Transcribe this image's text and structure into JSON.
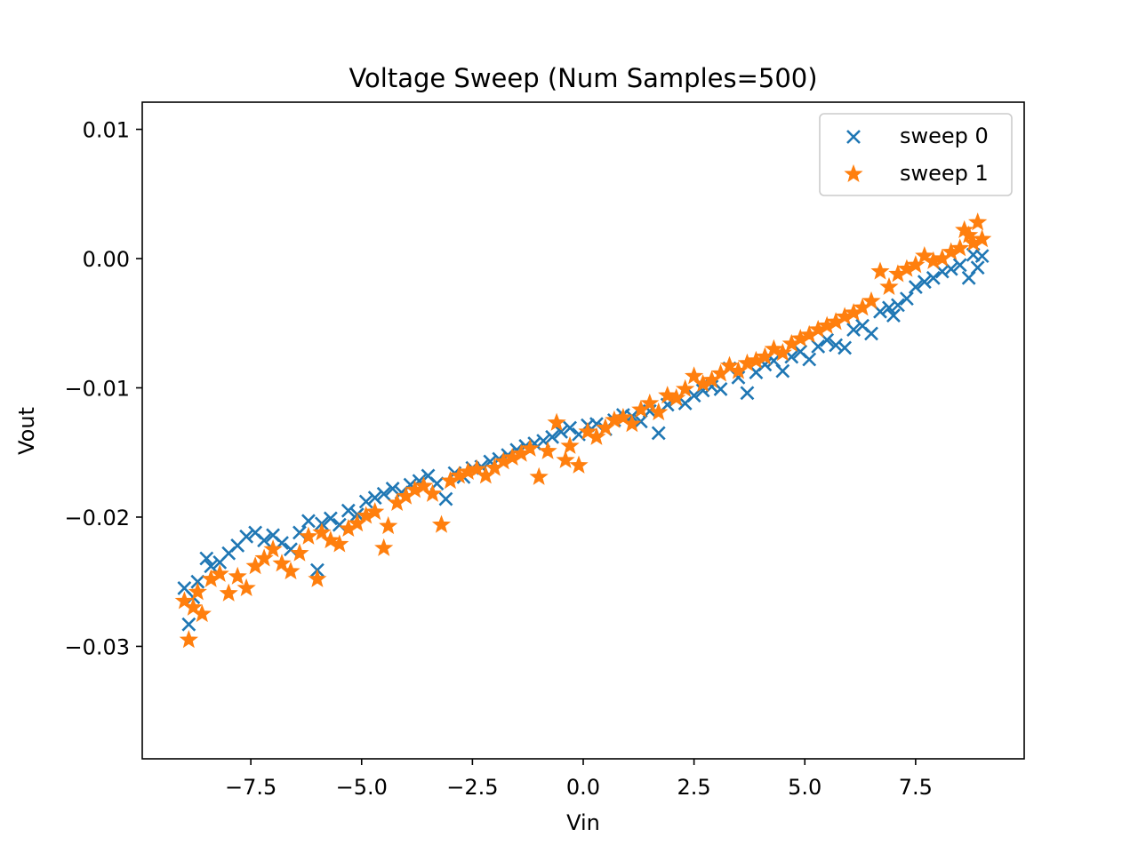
{
  "chart_data": {
    "type": "scatter",
    "title": "Voltage Sweep (Num Samples=500)",
    "xlabel": "Vin",
    "ylabel": "Vout",
    "xlim": [
      -9.95,
      9.95
    ],
    "ylim": [
      -0.0387,
      0.0121
    ],
    "x_ticks": [
      -7.5,
      -5.0,
      -2.5,
      0.0,
      2.5,
      5.0,
      7.5
    ],
    "x_tick_labels": [
      "−7.5",
      "−5.0",
      "−2.5",
      "0.0",
      "2.5",
      "5.0",
      "7.5"
    ],
    "y_ticks": [
      0.01,
      0.0,
      -0.01,
      -0.02,
      -0.03
    ],
    "y_tick_labels": [
      "0.01",
      "0.00",
      "−0.01",
      "−0.02",
      "−0.03"
    ],
    "grid": false,
    "legend_position": "top-right",
    "series": [
      {
        "name": "sweep 0",
        "marker": "x",
        "color": "#1f77b4",
        "x": [
          -9.0,
          -8.9,
          -8.8,
          -8.7,
          -8.5,
          -8.4,
          -8.2,
          -8.0,
          -7.8,
          -7.6,
          -7.4,
          -7.2,
          -7.0,
          -6.8,
          -6.6,
          -6.4,
          -6.2,
          -6.0,
          -5.9,
          -5.7,
          -5.5,
          -5.3,
          -5.1,
          -4.9,
          -4.7,
          -4.5,
          -4.3,
          -4.1,
          -3.9,
          -3.7,
          -3.5,
          -3.3,
          -3.1,
          -2.9,
          -2.7,
          -2.5,
          -2.3,
          -2.1,
          -1.9,
          -1.7,
          -1.5,
          -1.3,
          -1.1,
          -0.9,
          -0.7,
          -0.5,
          -0.3,
          -0.1,
          0.1,
          0.3,
          0.5,
          0.7,
          0.9,
          1.1,
          1.3,
          1.5,
          1.7,
          1.9,
          2.1,
          2.3,
          2.5,
          2.7,
          2.9,
          3.1,
          3.3,
          3.5,
          3.7,
          3.9,
          4.1,
          4.3,
          4.5,
          4.7,
          4.9,
          5.1,
          5.3,
          5.5,
          5.7,
          5.9,
          6.1,
          6.3,
          6.5,
          6.7,
          6.9,
          7.0,
          7.1,
          7.3,
          7.5,
          7.7,
          7.9,
          8.1,
          8.3,
          8.5,
          8.7,
          8.8,
          8.9,
          9.0
        ],
        "y": [
          -0.0255,
          -0.0283,
          -0.0262,
          -0.025,
          -0.0232,
          -0.0238,
          -0.0235,
          -0.0228,
          -0.0222,
          -0.0215,
          -0.0212,
          -0.0218,
          -0.0214,
          -0.022,
          -0.0225,
          -0.0212,
          -0.0203,
          -0.0241,
          -0.0205,
          -0.0201,
          -0.0206,
          -0.0195,
          -0.0198,
          -0.0188,
          -0.0185,
          -0.0182,
          -0.0178,
          -0.0181,
          -0.0175,
          -0.0172,
          -0.0168,
          -0.0174,
          -0.0186,
          -0.0166,
          -0.0169,
          -0.0162,
          -0.0161,
          -0.0157,
          -0.0155,
          -0.0152,
          -0.0148,
          -0.0145,
          -0.0143,
          -0.0141,
          -0.0138,
          -0.0134,
          -0.0131,
          -0.0136,
          -0.0129,
          -0.0128,
          -0.0132,
          -0.0125,
          -0.0121,
          -0.0122,
          -0.0126,
          -0.0118,
          -0.0135,
          -0.0113,
          -0.0109,
          -0.0112,
          -0.0106,
          -0.0102,
          -0.0099,
          -0.0101,
          -0.0085,
          -0.0092,
          -0.0104,
          -0.0088,
          -0.0082,
          -0.0079,
          -0.0087,
          -0.0076,
          -0.0072,
          -0.0078,
          -0.0068,
          -0.0063,
          -0.0067,
          -0.0069,
          -0.0055,
          -0.0052,
          -0.0058,
          -0.0041,
          -0.0038,
          -0.0044,
          -0.0036,
          -0.0031,
          -0.0022,
          -0.0018,
          -0.0015,
          -0.001,
          -0.0008,
          -0.0005,
          -0.0015,
          0.0003,
          -0.0007,
          0.0002
        ]
      },
      {
        "name": "sweep 1",
        "marker": "*",
        "color": "#ff7f0e",
        "x": [
          -9.0,
          -8.9,
          -8.8,
          -8.7,
          -8.6,
          -8.4,
          -8.2,
          -8.0,
          -7.8,
          -7.6,
          -7.4,
          -7.2,
          -7.0,
          -6.8,
          -6.6,
          -6.4,
          -6.2,
          -6.0,
          -5.9,
          -5.7,
          -5.5,
          -5.3,
          -5.1,
          -4.9,
          -4.7,
          -4.5,
          -4.4,
          -4.2,
          -4.0,
          -3.8,
          -3.6,
          -3.4,
          -3.2,
          -3.0,
          -2.8,
          -2.6,
          -2.4,
          -2.2,
          -2.0,
          -1.8,
          -1.6,
          -1.4,
          -1.2,
          -1.0,
          -0.8,
          -0.6,
          -0.4,
          -0.3,
          -0.1,
          0.1,
          0.3,
          0.5,
          0.7,
          0.9,
          1.1,
          1.3,
          1.5,
          1.7,
          1.9,
          2.1,
          2.3,
          2.5,
          2.7,
          2.9,
          3.1,
          3.3,
          3.5,
          3.7,
          3.9,
          4.1,
          4.3,
          4.5,
          4.7,
          4.9,
          5.1,
          5.3,
          5.5,
          5.7,
          5.9,
          6.1,
          6.3,
          6.5,
          6.7,
          6.9,
          7.1,
          7.3,
          7.5,
          7.7,
          7.9,
          8.1,
          8.3,
          8.5,
          8.6,
          8.7,
          8.8,
          8.9,
          9.0
        ],
        "y": [
          -0.0265,
          -0.0295,
          -0.027,
          -0.0258,
          -0.0275,
          -0.0248,
          -0.0244,
          -0.0259,
          -0.0246,
          -0.0255,
          -0.0238,
          -0.0232,
          -0.0225,
          -0.0236,
          -0.0242,
          -0.0228,
          -0.0215,
          -0.0248,
          -0.0212,
          -0.0218,
          -0.0221,
          -0.0209,
          -0.0205,
          -0.0199,
          -0.0196,
          -0.0224,
          -0.0207,
          -0.0189,
          -0.0184,
          -0.0179,
          -0.0176,
          -0.0182,
          -0.0206,
          -0.0172,
          -0.0168,
          -0.0165,
          -0.0163,
          -0.0168,
          -0.0162,
          -0.0157,
          -0.0154,
          -0.0151,
          -0.0147,
          -0.0169,
          -0.0149,
          -0.0127,
          -0.0156,
          -0.0145,
          -0.016,
          -0.0134,
          -0.0138,
          -0.0131,
          -0.0125,
          -0.0123,
          -0.0128,
          -0.0117,
          -0.0112,
          -0.0119,
          -0.0106,
          -0.0108,
          -0.0101,
          -0.0091,
          -0.0097,
          -0.0094,
          -0.0089,
          -0.0083,
          -0.0087,
          -0.0081,
          -0.0079,
          -0.0076,
          -0.007,
          -0.0073,
          -0.0066,
          -0.0062,
          -0.0059,
          -0.0055,
          -0.0052,
          -0.0049,
          -0.0045,
          -0.0042,
          -0.0038,
          -0.0033,
          -0.001,
          -0.0022,
          -0.0012,
          -0.0008,
          -0.0005,
          0.0002,
          -0.0002,
          0.0,
          0.0005,
          0.0008,
          0.0022,
          0.0018,
          0.0012,
          0.0028,
          0.0015
        ]
      }
    ]
  }
}
